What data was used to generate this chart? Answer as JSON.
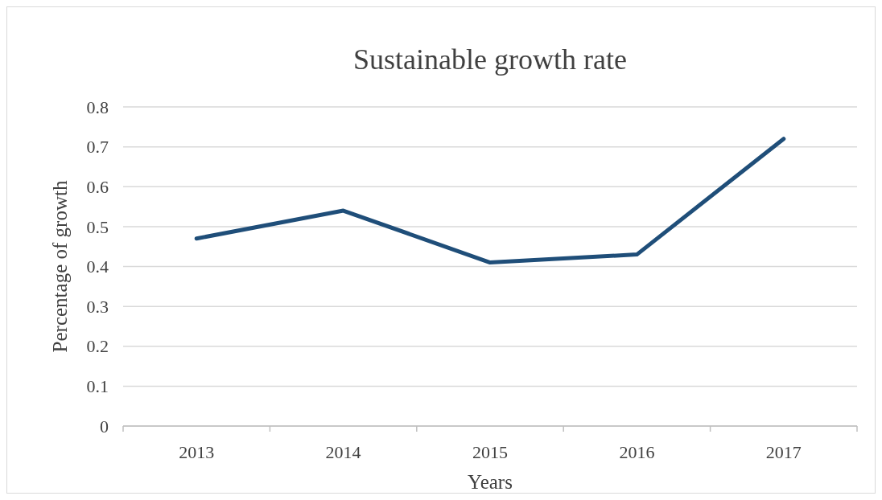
{
  "chart_data": {
    "type": "line",
    "title": "Sustainable growth rate",
    "xlabel": "Years",
    "ylabel": "Percentage of growth",
    "categories": [
      "2013",
      "2014",
      "2015",
      "2016",
      "2017"
    ],
    "series": [
      {
        "color": "#1f4e79",
        "values": [
          0.47,
          0.54,
          0.41,
          0.43,
          0.72
        ]
      }
    ],
    "ylim": [
      0,
      0.8
    ],
    "yticks": [
      0,
      0.1,
      0.2,
      0.3,
      0.4,
      0.5,
      0.6,
      0.7,
      0.8
    ],
    "grid": "y",
    "marker": "none",
    "line_style": "solid"
  }
}
